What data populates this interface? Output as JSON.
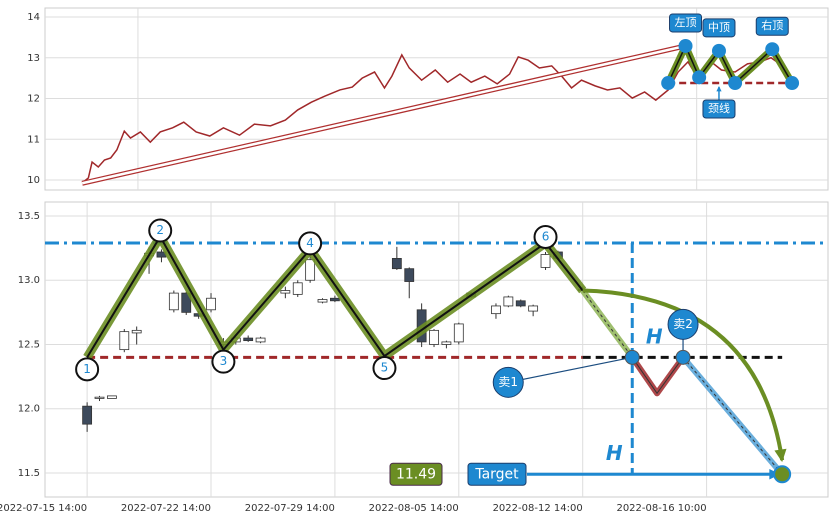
{
  "chart_data": [
    {
      "type": "line",
      "xlim": [
        -3.4,
        59.8
      ],
      "ylim": [
        9.755,
        14.221
      ],
      "yticks": [
        10,
        11,
        12,
        13,
        14
      ],
      "xticks": [
        4.1,
        49.2
      ],
      "grid": true,
      "series": [
        {
          "color": "#a0282a",
          "x": [
            -0.4,
            0.1,
            0.4,
            0.9,
            1.4,
            1.9,
            2.4,
            3.0,
            3.5,
            4.3,
            5.1,
            5.9,
            6.9,
            7.8,
            8.8,
            9.9,
            11.0,
            12.3,
            13.5,
            14.8,
            16.0,
            17.0,
            18.1,
            19.2,
            20.4,
            21.4,
            22.2,
            23.2,
            24.0,
            24.6,
            25.4,
            26.0,
            27.0,
            28.1,
            29.1,
            30.1,
            31.0,
            32.1,
            33.1,
            34.1,
            34.8,
            35.6,
            36.5,
            37.5,
            38.3,
            39.1,
            39.9,
            41.0,
            42.0,
            43.0,
            44.0,
            45.0,
            45.9,
            46.9,
            47.7,
            48.5,
            49.3,
            50.2,
            51.2,
            52.3,
            53.3,
            54.3,
            55.2,
            55.9
          ],
          "values": [
            9.93,
            10.05,
            10.44,
            10.32,
            10.49,
            10.54,
            10.74,
            11.2,
            11.03,
            11.18,
            10.93,
            11.18,
            11.28,
            11.42,
            11.18,
            11.08,
            11.28,
            11.1,
            11.37,
            11.33,
            11.47,
            11.72,
            11.91,
            12.06,
            12.21,
            12.28,
            12.5,
            12.65,
            12.26,
            12.55,
            13.07,
            12.75,
            12.45,
            12.7,
            12.4,
            12.6,
            12.4,
            12.55,
            12.36,
            12.6,
            13.02,
            12.94,
            12.75,
            12.8,
            12.55,
            12.26,
            12.45,
            12.31,
            12.21,
            12.26,
            12.01,
            12.16,
            11.96,
            12.21,
            12.65,
            12.9,
            12.5,
            12.94,
            12.7,
            12.65,
            12.85,
            12.9,
            13.0,
            12.85
          ]
        }
      ],
      "trend_arrow": {
        "color": "#b03030",
        "x": [
          -0.4,
          48.3
        ],
        "values": [
          9.92,
          13.29
        ]
      },
      "pattern": {
        "color": "#6b8e23",
        "x": [
          46.9,
          48.3,
          49.4,
          51.0,
          52.3,
          55.3,
          56.9
        ],
        "values": [
          12.38,
          13.29,
          12.52,
          13.17,
          12.38,
          13.21,
          12.38
        ]
      },
      "marker_color": "#1e88d0",
      "neckline": {
        "color": "#a0282a",
        "value": 12.38,
        "x": [
          46.9,
          56.9
        ]
      },
      "annotations": [
        {
          "text": "左顶",
          "x": 48.3,
          "y": 13.29,
          "position": "above"
        },
        {
          "text": "中顶",
          "x": 51.0,
          "y": 13.17,
          "position": "above"
        },
        {
          "text": "右顶",
          "x": 55.3,
          "y": 13.21,
          "position": "above"
        },
        {
          "text": "颈线",
          "x": 51.0,
          "y": 12.38,
          "position": "below"
        }
      ]
    },
    {
      "type": "candlestick",
      "xlim": [
        -3.4,
        59.8
      ],
      "ylim": [
        11.313,
        13.609
      ],
      "yticks": [
        11.5,
        {
          "value": 12,
          "label": "12.0"
        },
        12.5,
        {
          "value": 13,
          "label": "13.0"
        },
        13.5
      ],
      "xticks": [
        {
          "value": 0,
          "label": "2022-07-15 14:00"
        },
        {
          "value": 10,
          "label": "2022-07-22 14:00"
        },
        {
          "value": 20,
          "label": "2022-07-29 14:00"
        },
        {
          "value": 30,
          "label": "2022-08-05 14:00"
        },
        {
          "value": 40,
          "label": "2022-08-12 14:00"
        },
        {
          "value": 50,
          "label": "2022-08-16 10:00"
        }
      ],
      "grid": true,
      "candles": {
        "up_color": "#ffffff",
        "down_color": "#3d4a5c",
        "x": [
          0,
          1,
          2,
          3,
          4,
          5,
          6,
          7,
          8,
          9,
          10,
          11,
          12,
          13,
          14,
          16,
          17,
          18,
          19,
          20,
          25,
          26,
          27,
          28,
          29,
          30,
          31,
          33,
          34,
          35,
          36,
          37,
          38,
          40
        ],
        "open": [
          12.02,
          12.08,
          12.08,
          12.46,
          12.59,
          13.19,
          13.22,
          12.77,
          12.9,
          12.74,
          12.77,
          12.5,
          12.52,
          12.55,
          12.52,
          12.9,
          12.89,
          13.0,
          12.83,
          12.86,
          13.17,
          13.09,
          12.77,
          12.5,
          12.5,
          12.52,
          12.9,
          12.74,
          12.8,
          12.84,
          12.76,
          13.1,
          13.22,
          12.93
        ],
        "high": [
          12.05,
          12.1,
          12.1,
          12.62,
          12.64,
          13.26,
          13.24,
          12.92,
          12.91,
          12.76,
          12.9,
          12.55,
          12.56,
          12.57,
          12.56,
          12.95,
          13.0,
          13.2,
          12.86,
          12.88,
          13.26,
          13.1,
          12.82,
          12.62,
          12.53,
          12.67,
          12.91,
          12.82,
          12.88,
          12.85,
          12.81,
          13.22,
          13.23,
          12.95
        ],
        "low": [
          11.82,
          12.06,
          12.08,
          12.44,
          12.5,
          13.05,
          13.14,
          12.75,
          12.73,
          12.7,
          12.75,
          12.48,
          12.5,
          12.52,
          12.51,
          12.86,
          12.87,
          12.98,
          12.82,
          12.83,
          13.08,
          12.86,
          12.48,
          12.48,
          12.47,
          12.5,
          12.86,
          12.7,
          12.79,
          12.79,
          12.72,
          13.08,
          13.17,
          12.9
        ],
        "close": [
          11.88,
          12.09,
          12.1,
          12.6,
          12.61,
          13.21,
          13.18,
          12.9,
          12.75,
          12.72,
          12.86,
          12.52,
          12.55,
          12.53,
          12.55,
          12.92,
          12.98,
          13.16,
          12.85,
          12.84,
          13.09,
          12.99,
          12.52,
          12.61,
          12.52,
          12.66,
          12.87,
          12.8,
          12.87,
          12.8,
          12.8,
          13.2,
          13.17,
          12.92
        ]
      },
      "resistance": {
        "value": 13.29,
        "color": "#1e88d0"
      },
      "neckline": {
        "value": 12.4,
        "x": [
          0,
          40
        ],
        "color": "#a0282a"
      },
      "projection_line": {
        "value": 12.4,
        "x": [
          40,
          56.1
        ],
        "color": "#111111"
      },
      "pattern": {
        "color": "#6b8e23",
        "x": [
          0,
          5.9,
          11,
          18,
          24,
          37,
          40
        ],
        "values": [
          12.4,
          13.34,
          12.46,
          13.24,
          12.41,
          13.29,
          12.92
        ],
        "labels": [
          "1",
          "2",
          "3",
          "4",
          "5",
          "6",
          null
        ]
      },
      "breakdown": {
        "x": [
          40,
          44
        ],
        "values": [
          12.92,
          12.4
        ],
        "color": "#9fbf6f"
      },
      "pullback": {
        "x": [
          44,
          46,
          48.1
        ],
        "values": [
          12.4,
          12.12,
          12.4
        ],
        "color": "#a0282a"
      },
      "decline": {
        "x": [
          48.1,
          56.1
        ],
        "values": [
          12.4,
          11.49
        ],
        "color": "#6aaedc"
      },
      "curve_arrow": {
        "x": [
          40,
          56.1
        ],
        "values": [
          12.92,
          11.6
        ],
        "color": "#6b8e23"
      },
      "breakdown_line": {
        "x": 44,
        "values": [
          13.29,
          11.49
        ],
        "color": "#1e88d0"
      },
      "height_labels": [
        "H",
        "H"
      ],
      "sell_points": [
        {
          "text": "卖1",
          "x": 44,
          "y": 12.4
        },
        {
          "text": "卖2",
          "x": 48.1,
          "y": 12.4
        }
      ],
      "target": {
        "value": 11.49,
        "text": "Target",
        "x": 56.1
      }
    }
  ]
}
